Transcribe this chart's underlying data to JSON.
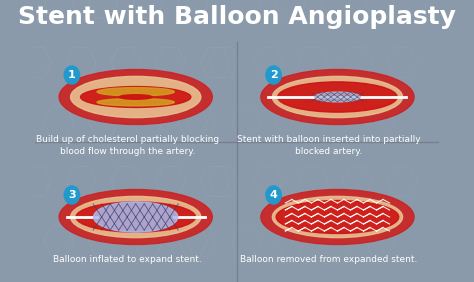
{
  "title": "Stent with Balloon Angioplasty",
  "title_color": "#ffffff",
  "title_fontsize": 18,
  "background_color": "#8a9aaa",
  "panel_labels": [
    "1",
    "2",
    "3",
    "4"
  ],
  "panel_label_color": "#ffffff",
  "panel_label_bg": "#2299cc",
  "captions": [
    "Build up of cholesterol partially blocking\nblood flow through the artery.",
    "Stent with balloon inserted into partially\nblocked artery.",
    "Balloon inflated to expand stent.",
    "Balloon removed from expanded stent."
  ],
  "caption_color": "#ffffff",
  "caption_fontsize": 6.5,
  "artery_outer_color": "#cc2222",
  "artery_inner_color": "#cc3333",
  "artery_wall_color": "#e8c090",
  "cholesterol_color": "#d4a020",
  "blood_color": "#cc1111",
  "stent_color": "#aabbdd",
  "stent_expanded_color": "#ccddee",
  "balloon_color": "#aabbee",
  "grid_lines": "#7788aa",
  "hex_color": "#9aabbb"
}
